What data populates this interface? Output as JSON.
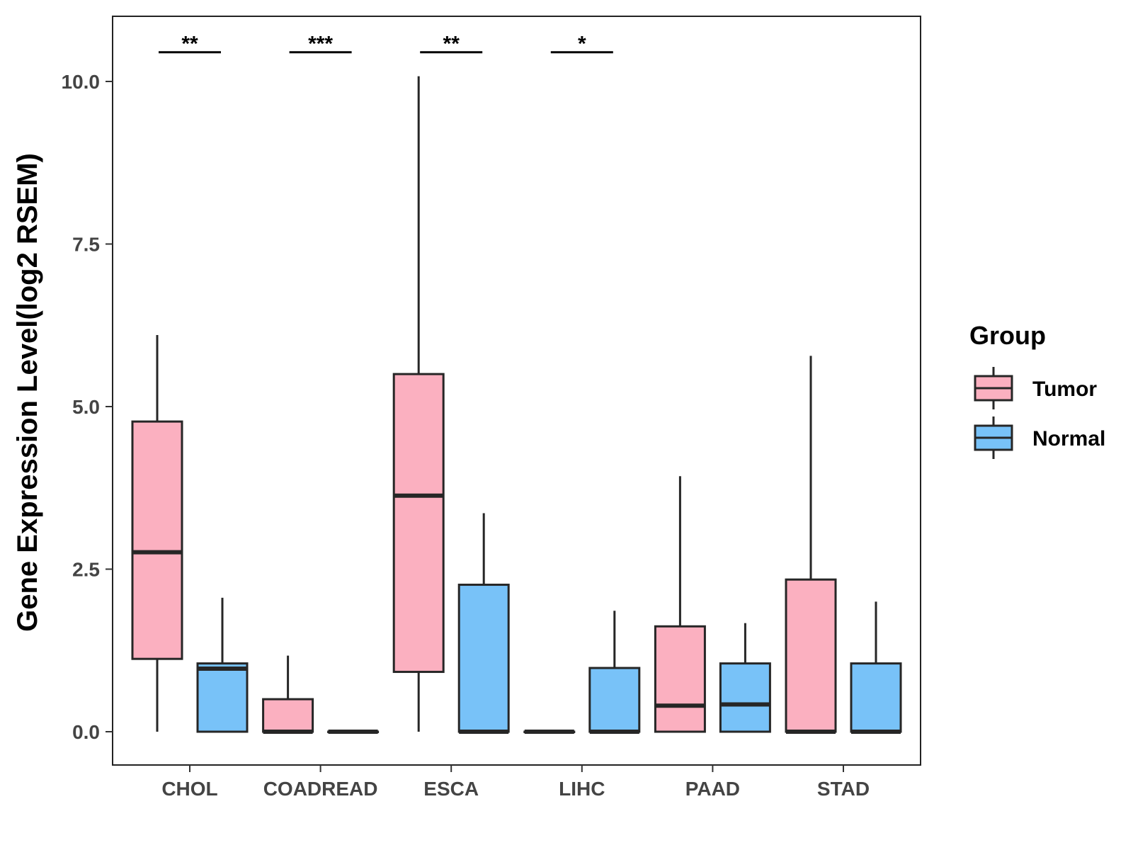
{
  "chart_data": {
    "type": "boxplot",
    "title": "",
    "xlabel": "",
    "ylabel": "Gene Expression Level(log2 RSEM)",
    "ylim": [
      -0.5,
      11.0
    ],
    "yticks": [
      {
        "value": 0.0,
        "label": "0.0"
      },
      {
        "value": 2.5,
        "label": "2.5"
      },
      {
        "value": 5.0,
        "label": "5.0"
      },
      {
        "value": 7.5,
        "label": "7.5"
      },
      {
        "value": 10.0,
        "label": "10.0"
      }
    ],
    "categories": [
      "CHOL",
      "COADREAD",
      "ESCA",
      "LIHC",
      "PAAD",
      "STAD"
    ],
    "legend": {
      "title": "Group",
      "position": "right"
    },
    "series": [
      {
        "name": "Tumor",
        "color": "#FBB0C0",
        "boxes": [
          {
            "min": 0.0,
            "q1": 1.12,
            "median": 2.76,
            "q3": 4.77,
            "max": 6.1
          },
          {
            "min": 0.0,
            "q1": 0.0,
            "median": 0.0,
            "q3": 0.5,
            "max": 1.17
          },
          {
            "min": 0.0,
            "q1": 0.92,
            "median": 3.63,
            "q3": 5.5,
            "max": 10.08
          },
          {
            "min": 0.0,
            "q1": 0.0,
            "median": 0.0,
            "q3": 0.0,
            "max": 0.0
          },
          {
            "min": 0.0,
            "q1": 0.0,
            "median": 0.4,
            "q3": 1.62,
            "max": 3.93
          },
          {
            "min": 0.0,
            "q1": 0.0,
            "median": 0.0,
            "q3": 2.34,
            "max": 5.78
          }
        ]
      },
      {
        "name": "Normal",
        "color": "#78C2F8",
        "boxes": [
          {
            "min": 0.0,
            "q1": 0.0,
            "median": 0.97,
            "q3": 1.05,
            "max": 2.06
          },
          {
            "min": 0.0,
            "q1": 0.0,
            "median": 0.0,
            "q3": 0.0,
            "max": 0.0
          },
          {
            "min": 0.0,
            "q1": 0.0,
            "median": 0.0,
            "q3": 2.26,
            "max": 3.36
          },
          {
            "min": 0.0,
            "q1": 0.0,
            "median": 0.0,
            "q3": 0.98,
            "max": 1.86
          },
          {
            "min": 0.0,
            "q1": 0.0,
            "median": 0.42,
            "q3": 1.05,
            "max": 1.67
          },
          {
            "min": 0.0,
            "q1": 0.0,
            "median": 0.0,
            "q3": 1.05,
            "max": 2.0
          }
        ]
      }
    ],
    "significance": [
      {
        "category": "CHOL",
        "label": "**"
      },
      {
        "category": "COADREAD",
        "label": "***"
      },
      {
        "category": "ESCA",
        "label": "**"
      },
      {
        "category": "LIHC",
        "label": "*"
      }
    ],
    "significance_level": 10.45
  }
}
